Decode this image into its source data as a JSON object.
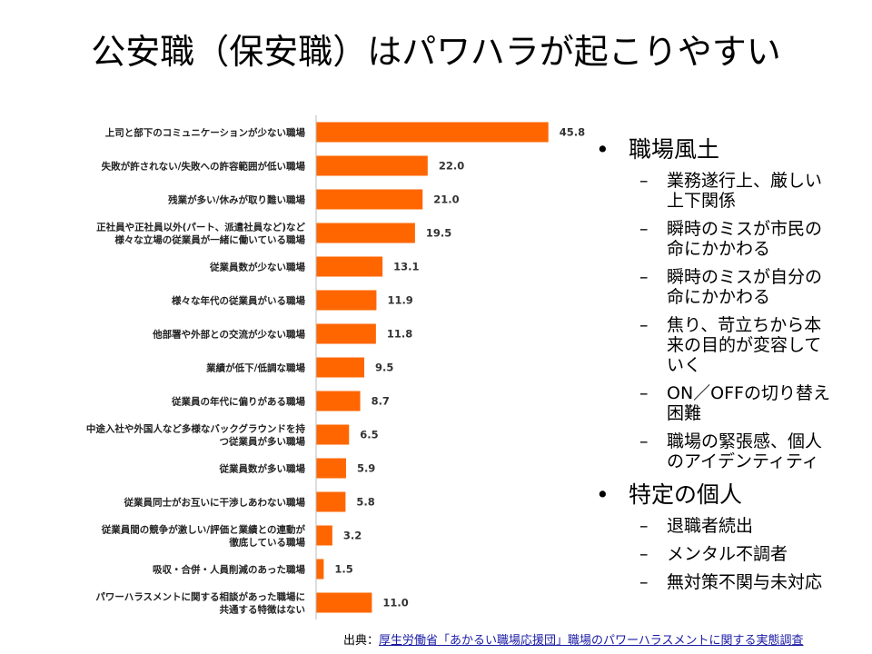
{
  "title": "公安職（保安職）はパワハラが起こりやすい",
  "colors": {
    "bar": "#ff6600",
    "axis": "#bbbbbb"
  },
  "chart_data": {
    "type": "bar",
    "orientation": "horizontal",
    "categories": [
      [
        "上司と部下のコミュニケーションが少ない職場"
      ],
      [
        "失敗が許されない/失敗への許容範囲が低い職場"
      ],
      [
        "残業が多い/休みが取り難い職場"
      ],
      [
        "正社員や正社員以外(パート、派遣社員など)など",
        "様々な立場の従業員が一緒に働いている職場"
      ],
      [
        "従業員数が少ない職場"
      ],
      [
        "様々な年代の従業員がいる職場"
      ],
      [
        "他部署や外部との交流が少ない職場"
      ],
      [
        "業績が低下/低調な職場"
      ],
      [
        "従業員の年代に偏りがある職場"
      ],
      [
        "中途入社や外国人など多様なバックグラウンドを持",
        "つ従業員が多い職場"
      ],
      [
        "従業員数が多い職場"
      ],
      [
        "従業員同士がお互いに干渉しあわない職場"
      ],
      [
        "従業員間の競争が激しい/評価と業績との連動が",
        "徹底している職場"
      ],
      [
        "吸収・合併・人員削減のあった職場"
      ],
      [
        "パワーハラスメントに関する相談があった職場に",
        "共通する特徴はない"
      ]
    ],
    "values": [
      45.8,
      22.0,
      21.0,
      19.5,
      13.1,
      11.9,
      11.8,
      9.5,
      8.7,
      6.5,
      5.9,
      5.8,
      3.2,
      1.5,
      11.0
    ],
    "value_labels": [
      "45.8",
      "22.0",
      "21.0",
      "19.5",
      "13.1",
      "11.9",
      "11.8",
      "9.5",
      "8.7",
      "6.5",
      "5.9",
      "5.8",
      "3.2",
      "1.5",
      "11.0"
    ],
    "xlim": [
      0,
      48
    ],
    "grid": false
  },
  "bullets": [
    {
      "heading": "職場風土",
      "items": [
        [
          "業務遂行上、厳しい",
          "上下関係"
        ],
        [
          "瞬時のミスが市民の",
          "命にかかわる"
        ],
        [
          "瞬時のミスが自分の",
          "命にかかわる"
        ],
        [
          "焦り、苛立ちから本",
          "来の目的が変容して",
          "いく"
        ],
        [
          "ON／OFFの切り替え",
          "困難"
        ],
        [
          "職場の緊張感、個人",
          "のアイデンティティ"
        ]
      ]
    },
    {
      "heading": "特定の個人",
      "items": [
        [
          "退職者続出"
        ],
        [
          "メンタル不調者"
        ],
        [
          "無対策不関与未対応"
        ]
      ]
    }
  ],
  "bullet_symbol": "•",
  "dash_symbol": "–",
  "source": {
    "prefix": "出典：",
    "link_text": "厚生労働省「あかるい職場応援団」職場のパワーハラスメントに関する実態調査"
  }
}
